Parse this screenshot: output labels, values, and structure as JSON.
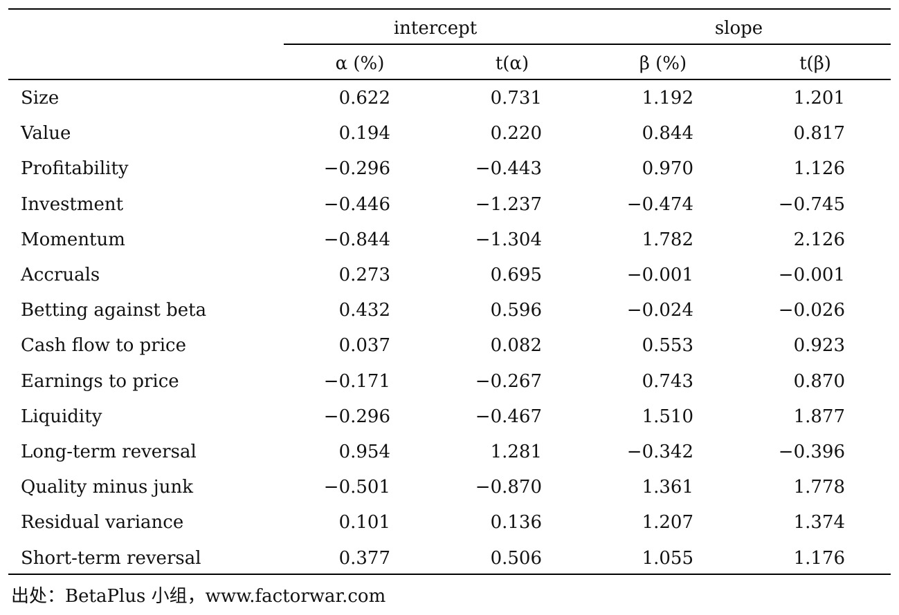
{
  "table": {
    "group_headers": {
      "intercept": "intercept",
      "slope": "slope"
    },
    "sub_headers": [
      "α (%)",
      "t(α)",
      "β (%)",
      "t(β)"
    ],
    "rows": [
      {
        "label": "Size",
        "values": [
          "0.622",
          "0.731",
          "1.192",
          "1.201"
        ]
      },
      {
        "label": "Value",
        "values": [
          "0.194",
          "0.220",
          "0.844",
          "0.817"
        ]
      },
      {
        "label": "Profitability",
        "values": [
          "−0.296",
          "−0.443",
          "0.970",
          "1.126"
        ]
      },
      {
        "label": "Investment",
        "values": [
          "−0.446",
          "−1.237",
          "−0.474",
          "−0.745"
        ]
      },
      {
        "label": "Momentum",
        "values": [
          "−0.844",
          "−1.304",
          "1.782",
          "2.126"
        ]
      },
      {
        "label": "Accruals",
        "values": [
          "0.273",
          "0.695",
          "−0.001",
          "−0.001"
        ]
      },
      {
        "label": "Betting against beta",
        "values": [
          "0.432",
          "0.596",
          "−0.024",
          "−0.026"
        ]
      },
      {
        "label": "Cash flow to price",
        "values": [
          "0.037",
          "0.082",
          "0.553",
          "0.923"
        ]
      },
      {
        "label": "Earnings to price",
        "values": [
          "−0.171",
          "−0.267",
          "0.743",
          "0.870"
        ]
      },
      {
        "label": "Liquidity",
        "values": [
          "−0.296",
          "−0.467",
          "1.510",
          "1.877"
        ]
      },
      {
        "label": "Long-term reversal",
        "values": [
          "0.954",
          "1.281",
          "−0.342",
          "−0.396"
        ]
      },
      {
        "label": "Quality minus junk",
        "values": [
          "−0.501",
          "−0.870",
          "1.361",
          "1.778"
        ]
      },
      {
        "label": "Residual variance",
        "values": [
          "0.101",
          "0.136",
          "1.207",
          "1.374"
        ]
      },
      {
        "label": "Short-term reversal",
        "values": [
          "0.377",
          "0.506",
          "1.055",
          "1.176"
        ]
      }
    ]
  },
  "source": "出处：BetaPlus 小组，www.factorwar.com"
}
